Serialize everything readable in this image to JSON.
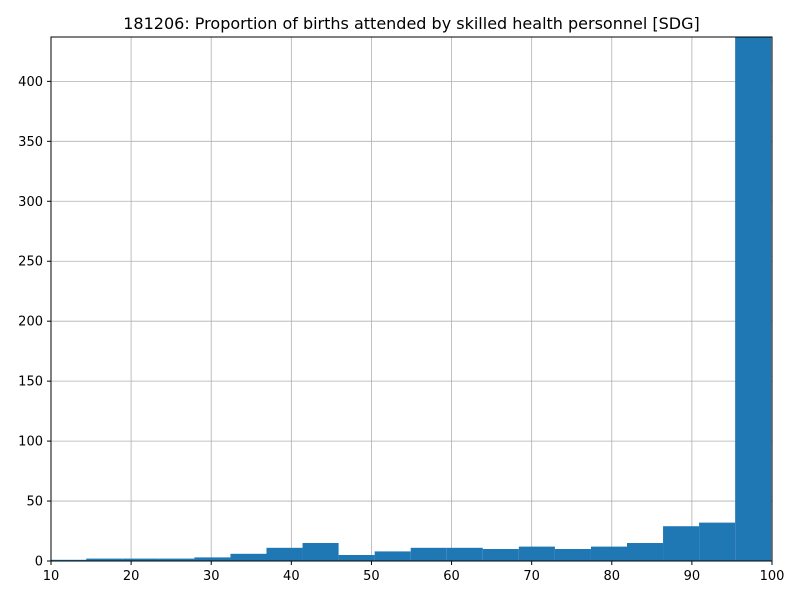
{
  "chart_data": {
    "type": "bar",
    "subtype": "histogram",
    "title": "181206: Proportion of births attended by skilled health personnel [SDG]",
    "xlabel": "",
    "ylabel": "",
    "xlim": [
      10,
      100
    ],
    "ylim": [
      0,
      437
    ],
    "grid": true,
    "bar_color": "#1f77b4",
    "xticks": [
      10,
      20,
      30,
      40,
      50,
      60,
      70,
      80,
      90,
      100
    ],
    "yticks": [
      0,
      50,
      100,
      150,
      200,
      250,
      300,
      350,
      400
    ],
    "bin_edges": [
      9.9,
      14.4,
      18.9,
      23.4,
      27.9,
      32.4,
      36.9,
      41.4,
      45.9,
      50.4,
      54.9,
      59.4,
      63.9,
      68.4,
      72.9,
      77.4,
      81.9,
      86.4,
      90.9,
      95.4,
      99.9
    ],
    "counts": [
      1,
      2,
      2,
      2,
      3,
      6,
      11,
      15,
      5,
      8,
      11,
      11,
      10,
      12,
      10,
      12,
      15,
      29,
      32,
      437
    ]
  }
}
